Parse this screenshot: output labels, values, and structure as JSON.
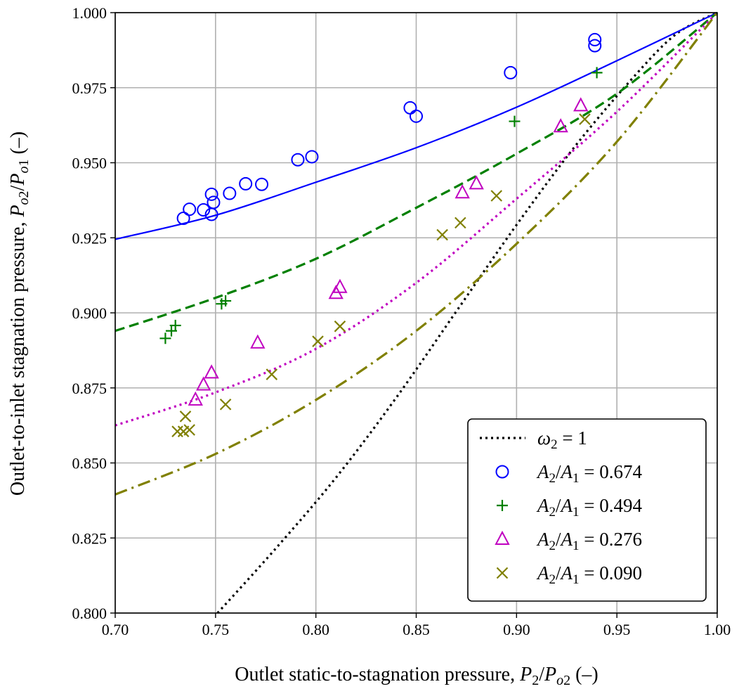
{
  "chart_data": {
    "type": "scatter",
    "xlabel": "Outlet static-to-stagnation pressure, P2/Po2 (–)",
    "ylabel": "Outlet-to-inlet stagnation pressure, Po2/Po1 (–)",
    "xlim": [
      0.7,
      1.0
    ],
    "ylim": [
      0.8,
      1.0
    ],
    "xticks": [
      "0.70",
      "0.75",
      "0.80",
      "0.85",
      "0.90",
      "0.95",
      "1.00"
    ],
    "yticks": [
      "0.800",
      "0.825",
      "0.850",
      "0.875",
      "0.900",
      "0.925",
      "0.950",
      "0.975",
      "1.000"
    ],
    "grid": true,
    "legend_position": "bottom-right",
    "lines": [
      {
        "name": "ω2 = 1",
        "style": "dotted",
        "color": "#000000",
        "x": [
          0.751,
          0.78,
          0.81,
          0.84,
          0.87,
          0.9,
          0.93,
          0.96,
          0.98,
          1.0
        ],
        "y": [
          0.8,
          0.8215,
          0.8451,
          0.8717,
          0.9005,
          0.9293,
          0.9562,
          0.9798,
          0.9931,
          1.0
        ]
      },
      {
        "name": "",
        "style": "solid",
        "color": "#0000ff",
        "x": [
          0.7,
          0.75,
          0.8,
          0.85,
          0.9,
          0.95,
          1.0
        ],
        "y": [
          0.9245,
          0.9325,
          0.9435,
          0.955,
          0.9685,
          0.984,
          1.0
        ]
      },
      {
        "name": "",
        "style": "dashed",
        "color": "#008000",
        "x": [
          0.7,
          0.75,
          0.8,
          0.85,
          0.9,
          0.95,
          1.0
        ],
        "y": [
          0.894,
          0.905,
          0.918,
          0.935,
          0.953,
          0.973,
          1.0
        ]
      },
      {
        "name": "",
        "style": "dotted",
        "color": "#c000c0",
        "x": [
          0.7,
          0.75,
          0.8,
          0.85,
          0.9,
          0.95,
          1.0
        ],
        "y": [
          0.8625,
          0.8735,
          0.888,
          0.91,
          0.938,
          0.967,
          1.0
        ]
      },
      {
        "name": "",
        "style": "dashdot",
        "color": "#808000",
        "x": [
          0.7,
          0.75,
          0.8,
          0.85,
          0.9,
          0.95,
          1.0
        ],
        "y": [
          0.8395,
          0.853,
          0.871,
          0.894,
          0.923,
          0.957,
          1.0
        ]
      }
    ],
    "series": [
      {
        "name": "A2/A1 = 0.674",
        "marker": "circle",
        "color": "#0000ff",
        "x": [
          0.734,
          0.737,
          0.744,
          0.748,
          0.748,
          0.749,
          0.757,
          0.765,
          0.773,
          0.791,
          0.798,
          0.847,
          0.85,
          0.897,
          0.939,
          0.939
        ],
        "y": [
          0.9315,
          0.9345,
          0.9343,
          0.9328,
          0.9395,
          0.9368,
          0.9398,
          0.943,
          0.9428,
          0.951,
          0.952,
          0.9683,
          0.9655,
          0.98,
          0.989,
          0.991
        ]
      },
      {
        "name": "A2/A1 = 0.494",
        "marker": "plus",
        "color": "#008000",
        "x": [
          0.725,
          0.728,
          0.73,
          0.753,
          0.755,
          0.899,
          0.94
        ],
        "y": [
          0.8915,
          0.894,
          0.8958,
          0.903,
          0.904,
          0.9638,
          0.98
        ]
      },
      {
        "name": "A2/A1 = 0.276",
        "marker": "triangle",
        "color": "#c000c0",
        "x": [
          0.74,
          0.744,
          0.748,
          0.771,
          0.81,
          0.812,
          0.873,
          0.88,
          0.922,
          0.932
        ],
        "y": [
          0.871,
          0.876,
          0.88,
          0.89,
          0.9065,
          0.9085,
          0.94,
          0.943,
          0.962,
          0.969
        ]
      },
      {
        "name": "A2/A1 = 0.090",
        "marker": "x",
        "color": "#808000",
        "x": [
          0.731,
          0.734,
          0.735,
          0.737,
          0.755,
          0.778,
          0.801,
          0.812,
          0.863,
          0.872,
          0.89,
          0.934
        ],
        "y": [
          0.8605,
          0.8605,
          0.8655,
          0.861,
          0.8695,
          0.8795,
          0.8905,
          0.8955,
          0.926,
          0.93,
          0.939,
          0.9645
        ]
      }
    ]
  }
}
